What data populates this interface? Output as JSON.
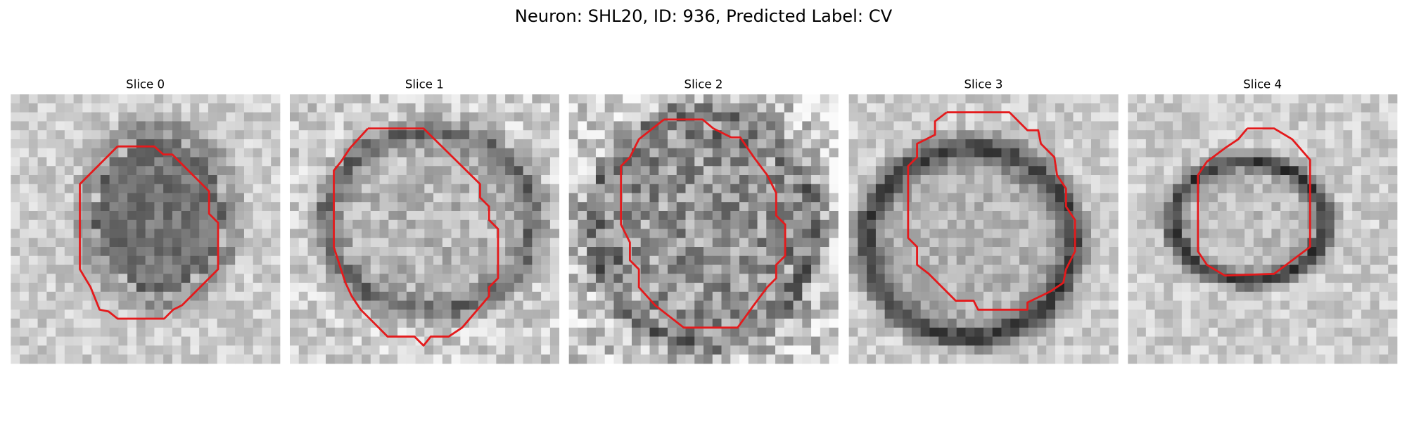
{
  "title": "Neuron: SHL20, ID: 936, Predicted Label: CV",
  "panels": [
    {
      "title": "Slice 0"
    },
    {
      "title": "Slice 1"
    },
    {
      "title": "Slice 2"
    },
    {
      "title": "Slice 3"
    },
    {
      "title": "Slice 4"
    }
  ]
}
